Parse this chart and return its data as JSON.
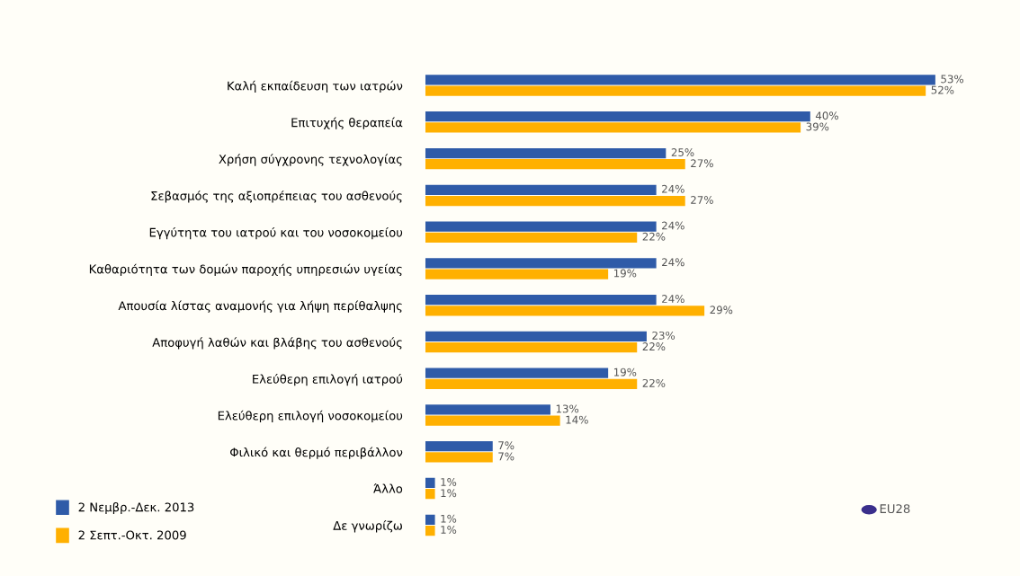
{
  "chart_data": {
    "type": "bar",
    "orientation": "horizontal",
    "legend": "bottom left",
    "categories": [
      "Καλή εκπαίδευση των ιατρών",
      "Επιτυχής θεραπεία",
      "Χρήση σύγχρονης τεχνολογίας",
      "Σεβασμός της αξιοπρέπειας του ασθενούς",
      "Εγγύτητα του ιατρού και του νοσοκομείου",
      "Καθαριότητα των δομών παροχής υπηρεσιών υγείας",
      "Απουσία λίστας αναμονής για λήψη περίθαλψης",
      "Αποφυγή λαθών και βλάβης του ασθενούς",
      "Ελεύθερη επιλογή ιατρού",
      "Ελεύθερη επιλογή νοσοκομείου",
      "Φιλικό και θερμό περιβάλλον",
      "Άλλο",
      "Δε γνωρίζω"
    ],
    "series": [
      {
        "name": "2 Νεμβρ.-Δεκ. 2013",
        "color": "#2f5ba8",
        "values": [
          53,
          40,
          25,
          24,
          24,
          24,
          24,
          23,
          19,
          13,
          7,
          1,
          1
        ],
        "value_labels": [
          "53%",
          "40%",
          "25%",
          "24%",
          "24%",
          "24%",
          "24%",
          "23%",
          "19%",
          "13%",
          "7%",
          "1%",
          "1%"
        ]
      },
      {
        "name": "2 Σεπτ.-Οκτ. 2009",
        "color": "#ffb000",
        "values": [
          52,
          39,
          27,
          27,
          22,
          19,
          29,
          22,
          22,
          14,
          7,
          1,
          1
        ],
        "value_labels": [
          "52%",
          "39%",
          "27%",
          "27%",
          "22%",
          "19%",
          "29%",
          "22%",
          "22%",
          "14%",
          "7%",
          "1%",
          "1%"
        ]
      }
    ],
    "annotations": [
      "EU28"
    ]
  }
}
